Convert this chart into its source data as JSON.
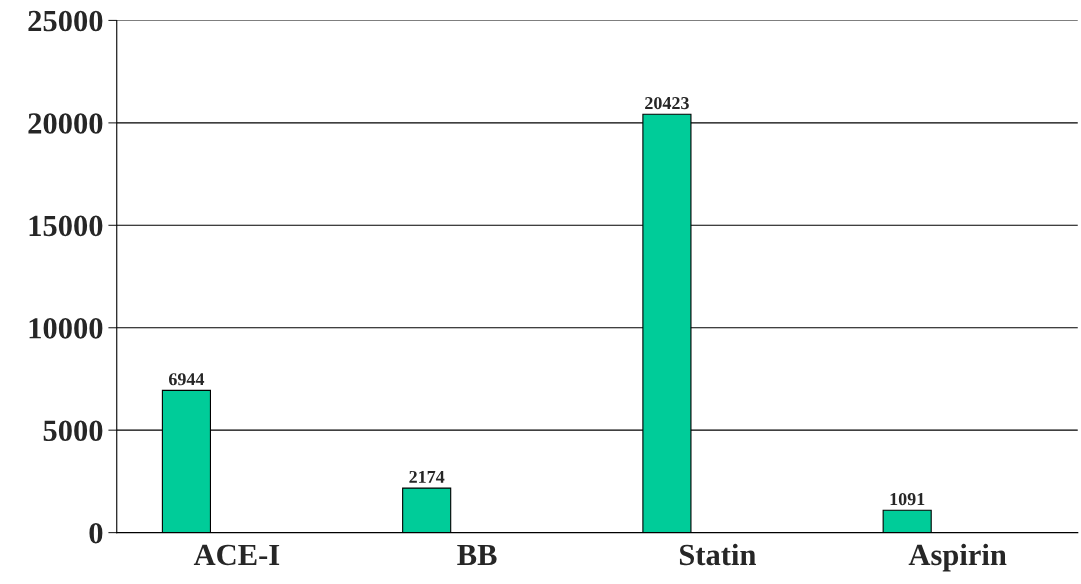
{
  "chart_data": {
    "type": "bar",
    "categories": [
      "ACE-I",
      "BB",
      "Statin",
      "Aspirin"
    ],
    "values": [
      6944,
      2174,
      20423,
      1091
    ],
    "color": "#00cc99",
    "ylim": [
      0,
      25000
    ],
    "yticks": [
      0,
      5000,
      10000,
      15000,
      20000,
      25000
    ],
    "grid": "y",
    "data_labels": true,
    "legend": false
  }
}
